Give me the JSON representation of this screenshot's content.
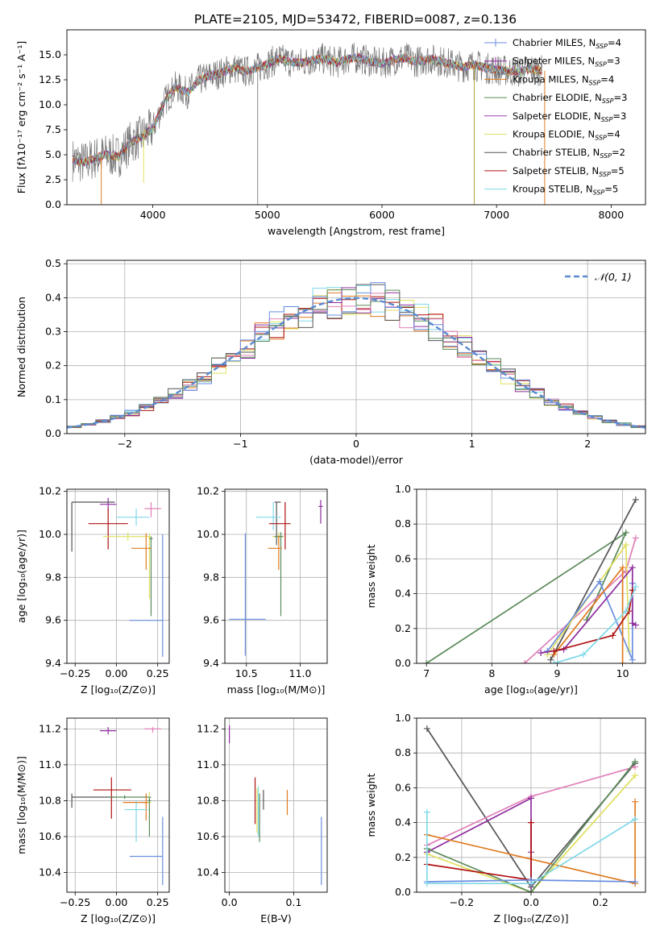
{
  "figure_title": "PLATE=2105, MJD=53472, FIBERID=0087, z=0.136",
  "colors": {
    "Chabrier MILES": "#6a8ee0",
    "Salpeter MILES": "#8e2c9e",
    "Kroupa MILES": "#e07b20",
    "Chabrier ELODIE": "#5a8a5a",
    "Salpeter ELODIE": "#a040b0",
    "Kroupa ELODIE": "#e0e060",
    "Chabrier STELIB": "#555555",
    "Salpeter STELIB": "#b01010",
    "Kroupa STELIB": "#80d8e8",
    "pink": "#e080b8"
  },
  "chart_data": [
    {
      "id": "spectrum",
      "type": "line",
      "title": "",
      "xlabel": "wavelength [Angstrom, rest frame]",
      "ylabel": "Flux [fλ10⁻¹⁷ erg cm⁻² s⁻¹ A⁻¹]",
      "xlim": [
        3250,
        8300
      ],
      "ylim": [
        0,
        17.5
      ],
      "xticks": [
        4000,
        5000,
        6000,
        7000,
        8000
      ],
      "yticks": [
        0.0,
        2.5,
        5.0,
        7.5,
        10.0,
        12.5,
        15.0
      ],
      "legend_position": "top-right",
      "legend": [
        {
          "label": "Chabrier MILES, N",
          "sub": "SSP",
          "tail": "=4",
          "color": "#6a8ee0",
          "marker": true
        },
        {
          "label": "Salpeter MILES, N",
          "sub": "SSP",
          "tail": "=3",
          "color": "#8e2c9e",
          "marker": true
        },
        {
          "label": "Kroupa MILES, N",
          "sub": "SSP",
          "tail": "=4",
          "color": "#e07b20"
        },
        {
          "label": "Chabrier ELODIE, N",
          "sub": "SSP",
          "tail": "=3",
          "color": "#5a8a5a"
        },
        {
          "label": "Salpeter ELODIE, N",
          "sub": "SSP",
          "tail": "=3",
          "color": "#a040b0"
        },
        {
          "label": "Kroupa ELODIE, N",
          "sub": "SSP",
          "tail": "=4",
          "color": "#e0e060"
        },
        {
          "label": "Chabrier STELIB, N",
          "sub": "SSP",
          "tail": "=2",
          "color": "#555555"
        },
        {
          "label": "Salpeter STELIB, N",
          "sub": "SSP",
          "tail": "=5",
          "color": "#b01010"
        },
        {
          "label": "Kroupa STELIB, N",
          "sub": "SSP",
          "tail": "=5",
          "color": "#80d8e8"
        }
      ],
      "continuum": {
        "x": [
          3300,
          3400,
          3500,
          3600,
          3700,
          3800,
          3900,
          4000,
          4100,
          4200,
          4300,
          4400,
          4500,
          4600,
          4700,
          4800,
          4900,
          5000,
          5100,
          5200,
          5300,
          5400,
          5500,
          5600,
          5700,
          5800,
          5900,
          6000,
          6100,
          6200,
          6300,
          6400,
          6500,
          6600,
          6700,
          6800,
          6900,
          7000,
          7100,
          7200,
          7300,
          7400
        ],
        "y": [
          4.5,
          4.2,
          4.7,
          5.0,
          4.8,
          6.2,
          6.8,
          7.6,
          10.3,
          11.8,
          11.2,
          12.4,
          12.9,
          13.2,
          13.7,
          13.3,
          13.6,
          14.1,
          14.6,
          14.3,
          14.2,
          14.5,
          14.6,
          14.2,
          14.6,
          14.7,
          14.3,
          14.1,
          14.5,
          14.7,
          14.3,
          14.6,
          14.4,
          14.1,
          13.8,
          14.0,
          13.7,
          13.5,
          13.4,
          13.3,
          13.6,
          13.4
        ]
      },
      "spikes": [
        {
          "x": 3550,
          "y": 0.0,
          "color": "#e07b20"
        },
        {
          "x": 3920,
          "y": 2.2,
          "color": "#e0e060"
        },
        {
          "x": 4915,
          "y": 0.0,
          "color": "#888888"
        },
        {
          "x": 6805,
          "y": 0.0,
          "color": "#b0a040"
        },
        {
          "x": 7420,
          "y": 0.0,
          "color": "#e07b20"
        }
      ]
    },
    {
      "id": "residuals",
      "type": "histogram",
      "title": "",
      "xlabel": "(data-model)/error",
      "ylabel": "Normed distribution",
      "xlim": [
        -2.5,
        2.5
      ],
      "ylim": [
        0,
        0.51
      ],
      "xticks": [
        -2,
        -1,
        0,
        1,
        2
      ],
      "yticks": [
        0.0,
        0.1,
        0.2,
        0.3,
        0.4,
        0.5
      ],
      "bins": 40,
      "bin_range": [
        -2.5,
        2.5
      ],
      "legend_label": "𝒩(0, 1)",
      "legend_position": "top-right",
      "gaussian": {
        "mean": 0,
        "sigma": 1,
        "color": "#5b8bd0"
      },
      "hist_colors": [
        "#e07b20",
        "#e0e060",
        "#80d8e8",
        "#b01010",
        "#8e2c9e",
        "#e080b8",
        "#555555",
        "#6a8ee0",
        "#5a8a5a"
      ]
    },
    {
      "id": "age-vs-Z",
      "type": "errorbar",
      "xlabel": "Z [log₁₀(Z/Z⊙)]",
      "ylabel": "age  [log₁₀(age/yr)]",
      "xlim": [
        -0.3,
        0.32
      ],
      "ylim": [
        9.4,
        10.21
      ],
      "xticks": [
        -0.25,
        0.0,
        0.25
      ],
      "xticklabels": [
        "−0.25",
        "0.00",
        "0.25"
      ],
      "yticks": [
        9.4,
        9.6,
        9.8,
        10.0,
        10.2
      ],
      "points": [
        {
          "x": -0.05,
          "y": 10.14,
          "xlo": 0.05,
          "xhi": 0.05,
          "ylo": 0.03,
          "yhi": 0.03,
          "color": "#8e2c9e"
        },
        {
          "x": 0.21,
          "y": 10.12,
          "xlo": 0.04,
          "xhi": 0.06,
          "ylo": 0.04,
          "yhi": 0.03,
          "color": "#e080b8"
        },
        {
          "x": 0.12,
          "y": 10.08,
          "xlo": 0.12,
          "xhi": 0.08,
          "ylo": 0.04,
          "yhi": 0.04,
          "color": "#80d8e8"
        },
        {
          "x": -0.27,
          "y": 10.15,
          "xlo": 0.0,
          "xhi": 0.26,
          "ylo": 0.23,
          "yhi": 0.0,
          "color": "#555555"
        },
        {
          "x": -0.05,
          "y": 10.05,
          "xlo": 0.12,
          "xhi": 0.12,
          "ylo": 0.12,
          "yhi": 0.07,
          "color": "#b01010"
        },
        {
          "x": 0.07,
          "y": 9.99,
          "xlo": 0.15,
          "xhi": 0.13,
          "ylo": 0.02,
          "yhi": 0.02,
          "color": "#e0e060"
        },
        {
          "x": 0.2,
          "y": 9.99,
          "xlo": 0.01,
          "xhi": 0.01,
          "ylo": 0.29,
          "yhi": 0.01,
          "color": "#e0e060"
        },
        {
          "x": 0.21,
          "y": 9.98,
          "xlo": 0.01,
          "xhi": 0.01,
          "ylo": 0.36,
          "yhi": 0.01,
          "color": "#5a8a5a"
        },
        {
          "x": 0.18,
          "y": 9.935,
          "xlo": 0.09,
          "xhi": 0.03,
          "ylo": 0.1,
          "yhi": 0.07,
          "color": "#e07b20"
        },
        {
          "x": 0.28,
          "y": 9.6,
          "xlo": 0.2,
          "xhi": 0.0,
          "ylo": 0.17,
          "yhi": 0.4,
          "color": "#6a8ee0"
        }
      ]
    },
    {
      "id": "age-vs-mass",
      "type": "errorbar",
      "xlabel": "mass [log₁₀(M/M⊙)]",
      "ylabel": "",
      "xlim": [
        10.3,
        11.25
      ],
      "ylim": [
        9.4,
        10.21
      ],
      "xticks": [
        10.5,
        11.0
      ],
      "xticklabels": [
        "10.5",
        "11.0"
      ],
      "yticks": [
        9.4,
        9.6,
        9.8,
        10.0,
        10.2
      ],
      "points": [
        {
          "x": 11.19,
          "y": 10.13,
          "xlo": 0.02,
          "xhi": 0.02,
          "ylo": 0.08,
          "yhi": 0.03,
          "color": "#8e2c9e"
        },
        {
          "x": 10.78,
          "y": 10.15,
          "xlo": 0.02,
          "xhi": 0.04,
          "ylo": 0.2,
          "yhi": 0.0,
          "color": "#555555"
        },
        {
          "x": 10.75,
          "y": 10.08,
          "xlo": 0.16,
          "xhi": 0.07,
          "ylo": 0.06,
          "yhi": 0.07,
          "color": "#80d8e8"
        },
        {
          "x": 10.86,
          "y": 10.05,
          "xlo": 0.15,
          "xhi": 0.05,
          "ylo": 0.12,
          "yhi": 0.1,
          "color": "#b01010"
        },
        {
          "x": 10.8,
          "y": 9.99,
          "xlo": 0.06,
          "xhi": 0.05,
          "ylo": 0.04,
          "yhi": 0.02,
          "color": "#e0e060"
        },
        {
          "x": 10.82,
          "y": 9.99,
          "xlo": 0.06,
          "xhi": 0.02,
          "ylo": 0.37,
          "yhi": 0.02,
          "color": "#5a8a5a"
        },
        {
          "x": 10.8,
          "y": 9.935,
          "xlo": 0.1,
          "xhi": 0.03,
          "ylo": 0.1,
          "yhi": 0.06,
          "color": "#e07b20"
        },
        {
          "x": 10.49,
          "y": 9.605,
          "xlo": 0.15,
          "xhi": 0.19,
          "ylo": 0.17,
          "yhi": 0.4,
          "color": "#6a8ee0"
        }
      ]
    },
    {
      "id": "weight-vs-age",
      "type": "line",
      "xlabel": "age  [log₁₀(age/yr)]",
      "ylabel": "mass weight",
      "xlim": [
        6.85,
        10.35
      ],
      "ylim": [
        0,
        1.0
      ],
      "xticks": [
        7,
        8,
        9,
        10
      ],
      "yticks": [
        0.0,
        0.2,
        0.4,
        0.6,
        0.8,
        1.0
      ],
      "series": [
        {
          "color": "#5a8a5a",
          "x": [
            7.0,
            10.05,
            9.45
          ],
          "y": [
            0.0,
            0.75,
            0.25
          ]
        },
        {
          "color": "#555555",
          "x": [
            8.9,
            10.2
          ],
          "y": [
            0.02,
            0.94
          ]
        },
        {
          "color": "#e080b8",
          "x": [
            8.5,
            10.05,
            10.2
          ],
          "y": [
            0.0,
            0.53,
            0.72
          ]
        },
        {
          "color": "#e0e060",
          "x": [
            8.85,
            10.05,
            10.1
          ],
          "y": [
            0.05,
            0.68,
            0.07
          ]
        },
        {
          "color": "#6a8ee0",
          "x": [
            8.85,
            9.65,
            10.15,
            10.15
          ],
          "y": [
            0.07,
            0.47,
            0.02,
            0.46
          ]
        },
        {
          "color": "#8e2c9e",
          "x": [
            8.75,
            9.1,
            10.15,
            10.15,
            10.2
          ],
          "y": [
            0.06,
            0.08,
            0.55,
            0.23,
            0.22
          ]
        },
        {
          "color": "#e07b20",
          "x": [
            8.95,
            10.0,
            10.0
          ],
          "y": [
            0.05,
            0.55,
            0.0
          ]
        },
        {
          "color": "#b01010",
          "x": [
            8.95,
            9.85,
            10.1,
            10.15
          ],
          "y": [
            0.07,
            0.16,
            0.3,
            0.42
          ]
        },
        {
          "color": "#80d8e8",
          "x": [
            8.95,
            9.4,
            10.05,
            10.2
          ],
          "y": [
            0.0,
            0.05,
            0.3,
            0.44
          ]
        }
      ]
    },
    {
      "id": "mass-vs-Z",
      "type": "errorbar",
      "xlabel": "Z [log₁₀(Z/Z⊙)]",
      "ylabel": "mass [log₁₀(M/M⊙)]",
      "xlim": [
        -0.3,
        0.32
      ],
      "ylim": [
        10.29,
        11.26
      ],
      "xticks": [
        -0.25,
        0.0,
        0.25
      ],
      "xticklabels": [
        "−0.25",
        "0.00",
        "0.25"
      ],
      "yticks": [
        10.4,
        10.6,
        10.8,
        11.0,
        11.2
      ],
      "points": [
        {
          "x": -0.05,
          "y": 11.19,
          "xlo": 0.05,
          "xhi": 0.05,
          "ylo": 0.02,
          "yhi": 0.02,
          "color": "#8e2c9e"
        },
        {
          "x": 0.22,
          "y": 11.2,
          "xlo": 0.05,
          "xhi": 0.05,
          "ylo": 0.02,
          "yhi": 0.01,
          "color": "#e080b8"
        },
        {
          "x": -0.27,
          "y": 10.82,
          "xlo": 0.0,
          "xhi": 0.26,
          "ylo": 0.06,
          "yhi": 0.02,
          "color": "#555555"
        },
        {
          "x": -0.03,
          "y": 10.86,
          "xlo": 0.11,
          "xhi": 0.12,
          "ylo": 0.16,
          "yhi": 0.07,
          "color": "#b01010"
        },
        {
          "x": 0.05,
          "y": 10.82,
          "xlo": 0.1,
          "xhi": 0.16,
          "ylo": 0.01,
          "yhi": 0.01,
          "color": "#5a8a5a"
        },
        {
          "x": 0.12,
          "y": 10.79,
          "xlo": 0.08,
          "xhi": 0.08,
          "ylo": 0.01,
          "yhi": 0.01,
          "color": "#e07b20"
        },
        {
          "x": 0.2,
          "y": 10.79,
          "xlo": 0.01,
          "xhi": 0.01,
          "ylo": 0.1,
          "yhi": 0.06,
          "color": "#e0e060"
        },
        {
          "x": 0.2,
          "y": 10.8,
          "xlo": 0.01,
          "xhi": 0.01,
          "ylo": 0.2,
          "yhi": 0.02,
          "color": "#5a8a5a"
        },
        {
          "x": 0.18,
          "y": 10.79,
          "xlo": 0.01,
          "xhi": 0.01,
          "ylo": 0.1,
          "yhi": 0.05,
          "color": "#e07b20"
        },
        {
          "x": 0.12,
          "y": 10.75,
          "xlo": 0.07,
          "xhi": 0.07,
          "ylo": 0.18,
          "yhi": 0.05,
          "color": "#80d8e8"
        },
        {
          "x": 0.28,
          "y": 10.49,
          "xlo": 0.2,
          "xhi": 0.0,
          "ylo": 0.16,
          "yhi": 0.22,
          "color": "#6a8ee0"
        }
      ]
    },
    {
      "id": "mass-vs-ebv",
      "type": "errorbar",
      "xlabel": "E(B-V)",
      "ylabel": "",
      "xlim": [
        -0.007,
        0.152
      ],
      "ylim": [
        10.29,
        11.26
      ],
      "xticks": [
        0.0,
        0.1
      ],
      "xticklabels": [
        "0.0",
        "0.1"
      ],
      "yticks": [
        10.4,
        10.6,
        10.8,
        11.0,
        11.2
      ],
      "points": [
        {
          "x": 0.0,
          "y": 11.19,
          "xlo": 0,
          "xhi": 0,
          "ylo": 0.07,
          "yhi": 0.03,
          "color": "#8e2c9e"
        },
        {
          "x": 0.04,
          "y": 10.8,
          "xlo": 0,
          "xhi": 0,
          "ylo": 0.13,
          "yhi": 0.13,
          "color": "#b01010"
        },
        {
          "x": 0.045,
          "y": 10.76,
          "xlo": 0,
          "xhi": 0,
          "ylo": 0.16,
          "yhi": 0.12,
          "color": "#80d8e8"
        },
        {
          "x": 0.043,
          "y": 10.75,
          "xlo": 0,
          "xhi": 0,
          "ylo": 0.13,
          "yhi": 0.12,
          "color": "#e0e060"
        },
        {
          "x": 0.047,
          "y": 10.74,
          "xlo": 0,
          "xhi": 0,
          "ylo": 0.17,
          "yhi": 0.1,
          "color": "#5a8a5a"
        },
        {
          "x": 0.053,
          "y": 10.8,
          "xlo": 0,
          "xhi": 0,
          "ylo": 0.05,
          "yhi": 0.06,
          "color": "#555555"
        },
        {
          "x": 0.09,
          "y": 10.8,
          "xlo": 0,
          "xhi": 0,
          "ylo": 0.08,
          "yhi": 0.06,
          "color": "#e07b20"
        },
        {
          "x": 0.143,
          "y": 10.5,
          "xlo": 0,
          "xhi": 0,
          "ylo": 0.17,
          "yhi": 0.21,
          "color": "#6a8ee0"
        }
      ]
    },
    {
      "id": "weight-vs-Z",
      "type": "line",
      "xlabel": "Z [log₁₀(Z/Z⊙)]",
      "ylabel": "mass weight",
      "xlim": [
        -0.33,
        0.33
      ],
      "ylim": [
        0,
        1.0
      ],
      "xticks": [
        -0.2,
        0.0,
        0.2
      ],
      "xticklabels": [
        "−0.2",
        "0.0",
        "0.2"
      ],
      "yticks": [
        0.0,
        0.2,
        0.4,
        0.6,
        0.8,
        1.0
      ],
      "series": [
        {
          "color": "#555555",
          "x": [
            -0.3,
            0.0,
            0.3
          ],
          "y": [
            0.94,
            0.03,
            0.74
          ]
        },
        {
          "color": "#e080b8",
          "x": [
            -0.3,
            0.0,
            0.3
          ],
          "y": [
            0.27,
            0.55,
            0.72
          ]
        },
        {
          "color": "#8e2c9e",
          "x": [
            -0.3,
            0.0,
            0.0,
            0.0
          ],
          "y": [
            0.23,
            0.54,
            0.23,
            0.0
          ]
        },
        {
          "color": "#e07b20",
          "x": [
            -0.3,
            0.3,
            0.3
          ],
          "y": [
            0.33,
            0.05,
            0.52
          ]
        },
        {
          "color": "#e0e060",
          "x": [
            -0.3,
            0.0,
            0.3
          ],
          "y": [
            0.22,
            0.0,
            0.67
          ]
        },
        {
          "color": "#5a8a5a",
          "x": [
            -0.3,
            0.0,
            0.3
          ],
          "y": [
            0.25,
            0.0,
            0.75
          ]
        },
        {
          "color": "#b01010",
          "x": [
            -0.3,
            0.0,
            0.0
          ],
          "y": [
            0.16,
            0.07,
            0.4
          ]
        },
        {
          "color": "#6a8ee0",
          "x": [
            -0.3,
            0.0,
            0.3
          ],
          "y": [
            0.06,
            0.07,
            0.06
          ]
        },
        {
          "color": "#80d8e8",
          "x": [
            -0.3,
            -0.3,
            0.0,
            0.3
          ],
          "y": [
            0.46,
            0.05,
            0.05,
            0.42
          ]
        }
      ]
    }
  ]
}
